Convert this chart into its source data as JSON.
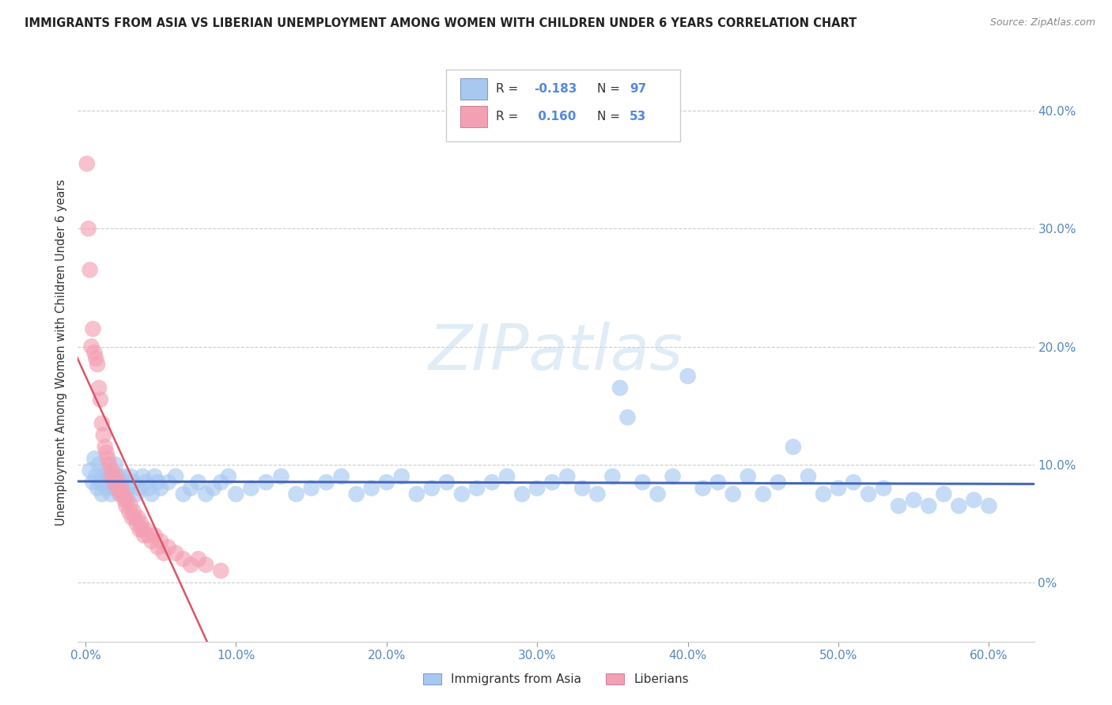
{
  "title": "IMMIGRANTS FROM ASIA VS LIBERIAN UNEMPLOYMENT AMONG WOMEN WITH CHILDREN UNDER 6 YEARS CORRELATION CHART",
  "source": "Source: ZipAtlas.com",
  "ylabel": "Unemployment Among Women with Children Under 6 years",
  "ytick_labels": [
    "0%",
    "10.0%",
    "20.0%",
    "30.0%",
    "40.0%"
  ],
  "ytick_vals": [
    0.0,
    0.1,
    0.2,
    0.3,
    0.4
  ],
  "xtick_labels": [
    "0.0%",
    "10.0%",
    "20.0%",
    "30.0%",
    "40.0%",
    "50.0%",
    "60.0%"
  ],
  "xtick_vals": [
    0.0,
    0.1,
    0.2,
    0.3,
    0.4,
    0.5,
    0.6
  ],
  "xlim": [
    -0.005,
    0.63
  ],
  "ylim": [
    -0.05,
    0.44
  ],
  "color_asia": "#a8c8f0",
  "color_lib": "#f4a0b4",
  "trendline_asia_color": "#4466bb",
  "trendline_lib_color": "#dd5566",
  "background_color": "#ffffff",
  "asia_pts": [
    [
      0.003,
      0.095
    ],
    [
      0.005,
      0.085
    ],
    [
      0.006,
      0.105
    ],
    [
      0.007,
      0.09
    ],
    [
      0.008,
      0.08
    ],
    [
      0.009,
      0.1
    ],
    [
      0.01,
      0.085
    ],
    [
      0.011,
      0.075
    ],
    [
      0.012,
      0.09
    ],
    [
      0.013,
      0.095
    ],
    [
      0.014,
      0.08
    ],
    [
      0.015,
      0.09
    ],
    [
      0.016,
      0.085
    ],
    [
      0.017,
      0.075
    ],
    [
      0.018,
      0.09
    ],
    [
      0.019,
      0.08
    ],
    [
      0.02,
      0.1
    ],
    [
      0.021,
      0.085
    ],
    [
      0.022,
      0.09
    ],
    [
      0.023,
      0.075
    ],
    [
      0.024,
      0.08
    ],
    [
      0.025,
      0.085
    ],
    [
      0.026,
      0.09
    ],
    [
      0.027,
      0.075
    ],
    [
      0.028,
      0.08
    ],
    [
      0.03,
      0.09
    ],
    [
      0.032,
      0.085
    ],
    [
      0.034,
      0.075
    ],
    [
      0.036,
      0.08
    ],
    [
      0.038,
      0.09
    ],
    [
      0.04,
      0.085
    ],
    [
      0.042,
      0.08
    ],
    [
      0.044,
      0.075
    ],
    [
      0.046,
      0.09
    ],
    [
      0.048,
      0.085
    ],
    [
      0.05,
      0.08
    ],
    [
      0.055,
      0.085
    ],
    [
      0.06,
      0.09
    ],
    [
      0.065,
      0.075
    ],
    [
      0.07,
      0.08
    ],
    [
      0.075,
      0.085
    ],
    [
      0.08,
      0.075
    ],
    [
      0.085,
      0.08
    ],
    [
      0.09,
      0.085
    ],
    [
      0.095,
      0.09
    ],
    [
      0.1,
      0.075
    ],
    [
      0.11,
      0.08
    ],
    [
      0.12,
      0.085
    ],
    [
      0.13,
      0.09
    ],
    [
      0.14,
      0.075
    ],
    [
      0.15,
      0.08
    ],
    [
      0.16,
      0.085
    ],
    [
      0.17,
      0.09
    ],
    [
      0.18,
      0.075
    ],
    [
      0.19,
      0.08
    ],
    [
      0.2,
      0.085
    ],
    [
      0.21,
      0.09
    ],
    [
      0.22,
      0.075
    ],
    [
      0.23,
      0.08
    ],
    [
      0.24,
      0.085
    ],
    [
      0.25,
      0.075
    ],
    [
      0.26,
      0.08
    ],
    [
      0.27,
      0.085
    ],
    [
      0.28,
      0.09
    ],
    [
      0.29,
      0.075
    ],
    [
      0.3,
      0.08
    ],
    [
      0.31,
      0.085
    ],
    [
      0.32,
      0.09
    ],
    [
      0.33,
      0.08
    ],
    [
      0.34,
      0.075
    ],
    [
      0.35,
      0.09
    ],
    [
      0.355,
      0.165
    ],
    [
      0.36,
      0.14
    ],
    [
      0.37,
      0.085
    ],
    [
      0.38,
      0.075
    ],
    [
      0.39,
      0.09
    ],
    [
      0.4,
      0.175
    ],
    [
      0.41,
      0.08
    ],
    [
      0.42,
      0.085
    ],
    [
      0.43,
      0.075
    ],
    [
      0.44,
      0.09
    ],
    [
      0.45,
      0.075
    ],
    [
      0.46,
      0.085
    ],
    [
      0.47,
      0.115
    ],
    [
      0.48,
      0.09
    ],
    [
      0.49,
      0.075
    ],
    [
      0.5,
      0.08
    ],
    [
      0.51,
      0.085
    ],
    [
      0.52,
      0.075
    ],
    [
      0.53,
      0.08
    ],
    [
      0.54,
      0.065
    ],
    [
      0.55,
      0.07
    ],
    [
      0.56,
      0.065
    ],
    [
      0.57,
      0.075
    ],
    [
      0.58,
      0.065
    ],
    [
      0.59,
      0.07
    ],
    [
      0.6,
      0.065
    ]
  ],
  "lib_pts": [
    [
      0.001,
      0.355
    ],
    [
      0.002,
      0.3
    ],
    [
      0.003,
      0.265
    ],
    [
      0.004,
      0.2
    ],
    [
      0.005,
      0.215
    ],
    [
      0.006,
      0.195
    ],
    [
      0.007,
      0.19
    ],
    [
      0.008,
      0.185
    ],
    [
      0.009,
      0.165
    ],
    [
      0.01,
      0.155
    ],
    [
      0.011,
      0.135
    ],
    [
      0.012,
      0.125
    ],
    [
      0.013,
      0.115
    ],
    [
      0.014,
      0.11
    ],
    [
      0.015,
      0.105
    ],
    [
      0.016,
      0.1
    ],
    [
      0.017,
      0.09
    ],
    [
      0.018,
      0.095
    ],
    [
      0.019,
      0.085
    ],
    [
      0.02,
      0.09
    ],
    [
      0.021,
      0.08
    ],
    [
      0.022,
      0.085
    ],
    [
      0.023,
      0.075
    ],
    [
      0.024,
      0.08
    ],
    [
      0.025,
      0.075
    ],
    [
      0.026,
      0.07
    ],
    [
      0.027,
      0.065
    ],
    [
      0.028,
      0.07
    ],
    [
      0.029,
      0.06
    ],
    [
      0.03,
      0.065
    ],
    [
      0.031,
      0.055
    ],
    [
      0.032,
      0.06
    ],
    [
      0.033,
      0.055
    ],
    [
      0.034,
      0.05
    ],
    [
      0.035,
      0.055
    ],
    [
      0.036,
      0.045
    ],
    [
      0.037,
      0.05
    ],
    [
      0.038,
      0.045
    ],
    [
      0.039,
      0.04
    ],
    [
      0.04,
      0.045
    ],
    [
      0.042,
      0.04
    ],
    [
      0.044,
      0.035
    ],
    [
      0.046,
      0.04
    ],
    [
      0.048,
      0.03
    ],
    [
      0.05,
      0.035
    ],
    [
      0.052,
      0.025
    ],
    [
      0.055,
      0.03
    ],
    [
      0.06,
      0.025
    ],
    [
      0.065,
      0.02
    ],
    [
      0.07,
      0.015
    ],
    [
      0.075,
      0.02
    ],
    [
      0.08,
      0.015
    ],
    [
      0.09,
      0.01
    ]
  ]
}
